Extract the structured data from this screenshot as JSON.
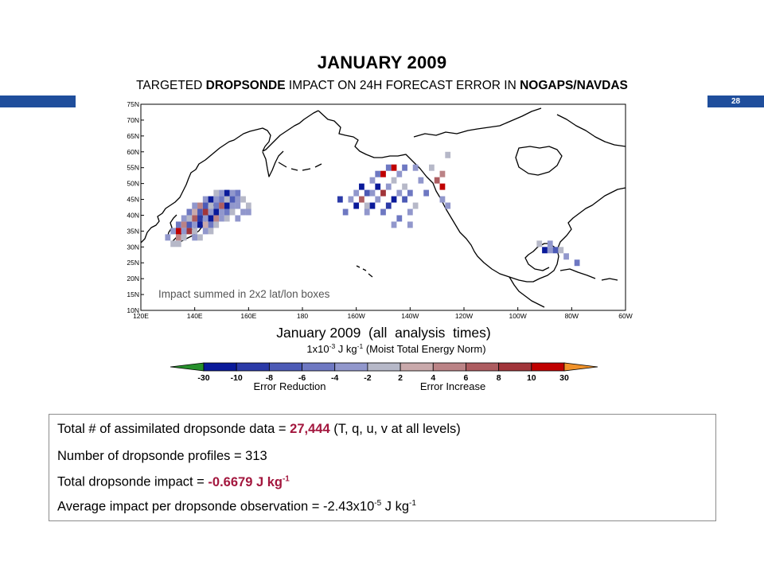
{
  "header": {
    "title": "JANUARY 2009",
    "subtitle_parts": [
      "TARGETED ",
      "DROPSONDE",
      " IMPACT ON 24H FORECAST ERROR IN ",
      "NOGAPS/NAVDAS"
    ],
    "slide_number": "28",
    "band_color": "#1f4e9c"
  },
  "chart_data": {
    "type": "heatmap",
    "title": "January 2009  (all  analysis  times)",
    "units_label": [
      "1x10",
      "-3",
      " J kg",
      "-1",
      " (Moist Total Energy Norm)"
    ],
    "annotation": "Impact summed in 2x2 lat/lon boxes",
    "x_tick_labels": [
      "120E",
      "140E",
      "160E",
      "180",
      "160W",
      "140W",
      "120W",
      "100W",
      "80W",
      "60W"
    ],
    "x_ticks_deg_east": [
      120,
      140,
      160,
      180,
      200,
      220,
      240,
      260,
      280,
      300
    ],
    "y_tick_labels": [
      "10N",
      "15N",
      "20N",
      "25N",
      "30N",
      "35N",
      "40N",
      "45N",
      "50N",
      "55N",
      "60N",
      "65N",
      "70N",
      "75N"
    ],
    "y_ticks_deg_north": [
      10,
      15,
      20,
      25,
      30,
      35,
      40,
      45,
      50,
      55,
      60,
      65,
      70,
      75
    ],
    "xlim_deg_east": [
      120,
      300
    ],
    "ylim_deg_north": [
      10,
      75
    ],
    "colorbar": {
      "levels": [
        "-30",
        "-10",
        "-8",
        "-6",
        "-4",
        "-2",
        "2",
        "4",
        "6",
        "8",
        "10",
        "30"
      ],
      "colors": [
        "#27902c",
        "#0a1a9a",
        "#2b3aa8",
        "#4c5ab6",
        "#6e78c2",
        "#9197cc",
        "#b6b8c8",
        "#c9a9ab",
        "#bb8386",
        "#ad5c60",
        "#a1353a",
        "#c00000",
        "#f0922a"
      ],
      "left_label": "Error Reduction",
      "right_label": "Error Increase"
    },
    "cells_lon_lat_value": [
      [
        132,
        31,
        -2
      ],
      [
        134,
        31,
        -2
      ],
      [
        130,
        33,
        -3
      ],
      [
        134,
        33,
        5
      ],
      [
        136,
        33,
        -2
      ],
      [
        132,
        35,
        -4
      ],
      [
        134,
        35,
        10
      ],
      [
        136,
        35,
        -3
      ],
      [
        138,
        35,
        8
      ],
      [
        140,
        35,
        -2
      ],
      [
        134,
        37,
        -6
      ],
      [
        136,
        37,
        4
      ],
      [
        138,
        37,
        -8
      ],
      [
        140,
        37,
        -3
      ],
      [
        142,
        37,
        -12
      ],
      [
        144,
        37,
        3
      ],
      [
        146,
        37,
        -5
      ],
      [
        148,
        37,
        -2
      ],
      [
        136,
        39,
        -4
      ],
      [
        138,
        39,
        -2
      ],
      [
        140,
        39,
        6
      ],
      [
        142,
        39,
        -9
      ],
      [
        144,
        39,
        -3
      ],
      [
        146,
        39,
        -11
      ],
      [
        148,
        39,
        5
      ],
      [
        150,
        39,
        -4
      ],
      [
        152,
        39,
        -2
      ],
      [
        138,
        41,
        -5
      ],
      [
        140,
        41,
        3
      ],
      [
        142,
        41,
        -7
      ],
      [
        144,
        41,
        9
      ],
      [
        146,
        41,
        -4
      ],
      [
        148,
        41,
        -14
      ],
      [
        150,
        41,
        -3
      ],
      [
        152,
        41,
        -6
      ],
      [
        154,
        41,
        -2
      ],
      [
        140,
        43,
        -3
      ],
      [
        142,
        43,
        5
      ],
      [
        144,
        43,
        -8
      ],
      [
        146,
        43,
        -2
      ],
      [
        148,
        43,
        -5
      ],
      [
        150,
        43,
        7
      ],
      [
        152,
        43,
        -12
      ],
      [
        154,
        43,
        -4
      ],
      [
        156,
        43,
        -3
      ],
      [
        144,
        45,
        -4
      ],
      [
        146,
        45,
        -13
      ],
      [
        148,
        45,
        -3
      ],
      [
        150,
        45,
        -6
      ],
      [
        152,
        45,
        -2
      ],
      [
        154,
        45,
        -7
      ],
      [
        156,
        45,
        -3
      ],
      [
        148,
        47,
        -2
      ],
      [
        150,
        47,
        -4
      ],
      [
        152,
        47,
        -11
      ],
      [
        154,
        47,
        -3
      ],
      [
        156,
        47,
        -5
      ],
      [
        158,
        45,
        -2
      ],
      [
        160,
        43,
        -2
      ],
      [
        160,
        41,
        -3
      ],
      [
        158,
        41,
        -4
      ],
      [
        156,
        39,
        -3
      ],
      [
        146,
        35,
        -2
      ],
      [
        144,
        35,
        -3
      ],
      [
        140,
        33,
        -4
      ],
      [
        142,
        33,
        -2
      ],
      [
        194,
        45,
        -9
      ],
      [
        196,
        41,
        -5
      ],
      [
        198,
        45,
        -3
      ],
      [
        200,
        43,
        -12
      ],
      [
        200,
        47,
        -4
      ],
      [
        202,
        45,
        6
      ],
      [
        202,
        49,
        -13
      ],
      [
        204,
        41,
        -3
      ],
      [
        204,
        47,
        -7
      ],
      [
        206,
        43,
        -11
      ],
      [
        206,
        51,
        -4
      ],
      [
        208,
        45,
        -3
      ],
      [
        208,
        49,
        -14
      ],
      [
        208,
        53,
        -6
      ],
      [
        210,
        41,
        -5
      ],
      [
        210,
        47,
        8
      ],
      [
        210,
        53,
        12
      ],
      [
        212,
        43,
        -9
      ],
      [
        212,
        49,
        -4
      ],
      [
        212,
        55,
        -5
      ],
      [
        214,
        37,
        -3
      ],
      [
        214,
        45,
        -12
      ],
      [
        214,
        51,
        -2
      ],
      [
        214,
        55,
        10
      ],
      [
        216,
        39,
        -6
      ],
      [
        216,
        47,
        -4
      ],
      [
        216,
        53,
        -3
      ],
      [
        218,
        45,
        -8
      ],
      [
        218,
        49,
        -2
      ],
      [
        218,
        55,
        -5
      ],
      [
        220,
        37,
        -3
      ],
      [
        220,
        41,
        -4
      ],
      [
        220,
        47,
        -6
      ],
      [
        222,
        43,
        -2
      ],
      [
        222,
        55,
        -4
      ],
      [
        224,
        51,
        -3
      ],
      [
        226,
        47,
        -5
      ],
      [
        228,
        55,
        -2
      ],
      [
        230,
        51,
        7
      ],
      [
        232,
        45,
        -4
      ],
      [
        232,
        49,
        10
      ],
      [
        234,
        43,
        -3
      ],
      [
        234,
        59,
        -2
      ],
      [
        232,
        53,
        5
      ],
      [
        204,
        43,
        -2
      ],
      [
        206,
        47,
        -3
      ],
      [
        268,
        31,
        -2
      ],
      [
        270,
        29,
        -12
      ],
      [
        272,
        29,
        -4
      ],
      [
        272,
        31,
        -3
      ],
      [
        274,
        29,
        -8
      ],
      [
        276,
        29,
        -2
      ],
      [
        278,
        27,
        -3
      ],
      [
        282,
        25,
        -5
      ]
    ]
  },
  "stats": {
    "line1_prefix": "Total # of assimilated dropsonde data = ",
    "line1_value": "27,444",
    "line1_suffix": " (T, q, u, v at all levels)",
    "line2": "Number of dropsonde profiles =  313",
    "line3_prefix": "Total dropsonde impact = ",
    "line3_value": "-0.6679 J kg",
    "line3_sup": "-1",
    "line4_prefix": "Average impact per dropsonde observation = -2.43x10",
    "line4_sup1": "-5",
    "line4_mid": " J kg",
    "line4_sup2": "-1",
    "accent": "#a3173e"
  }
}
